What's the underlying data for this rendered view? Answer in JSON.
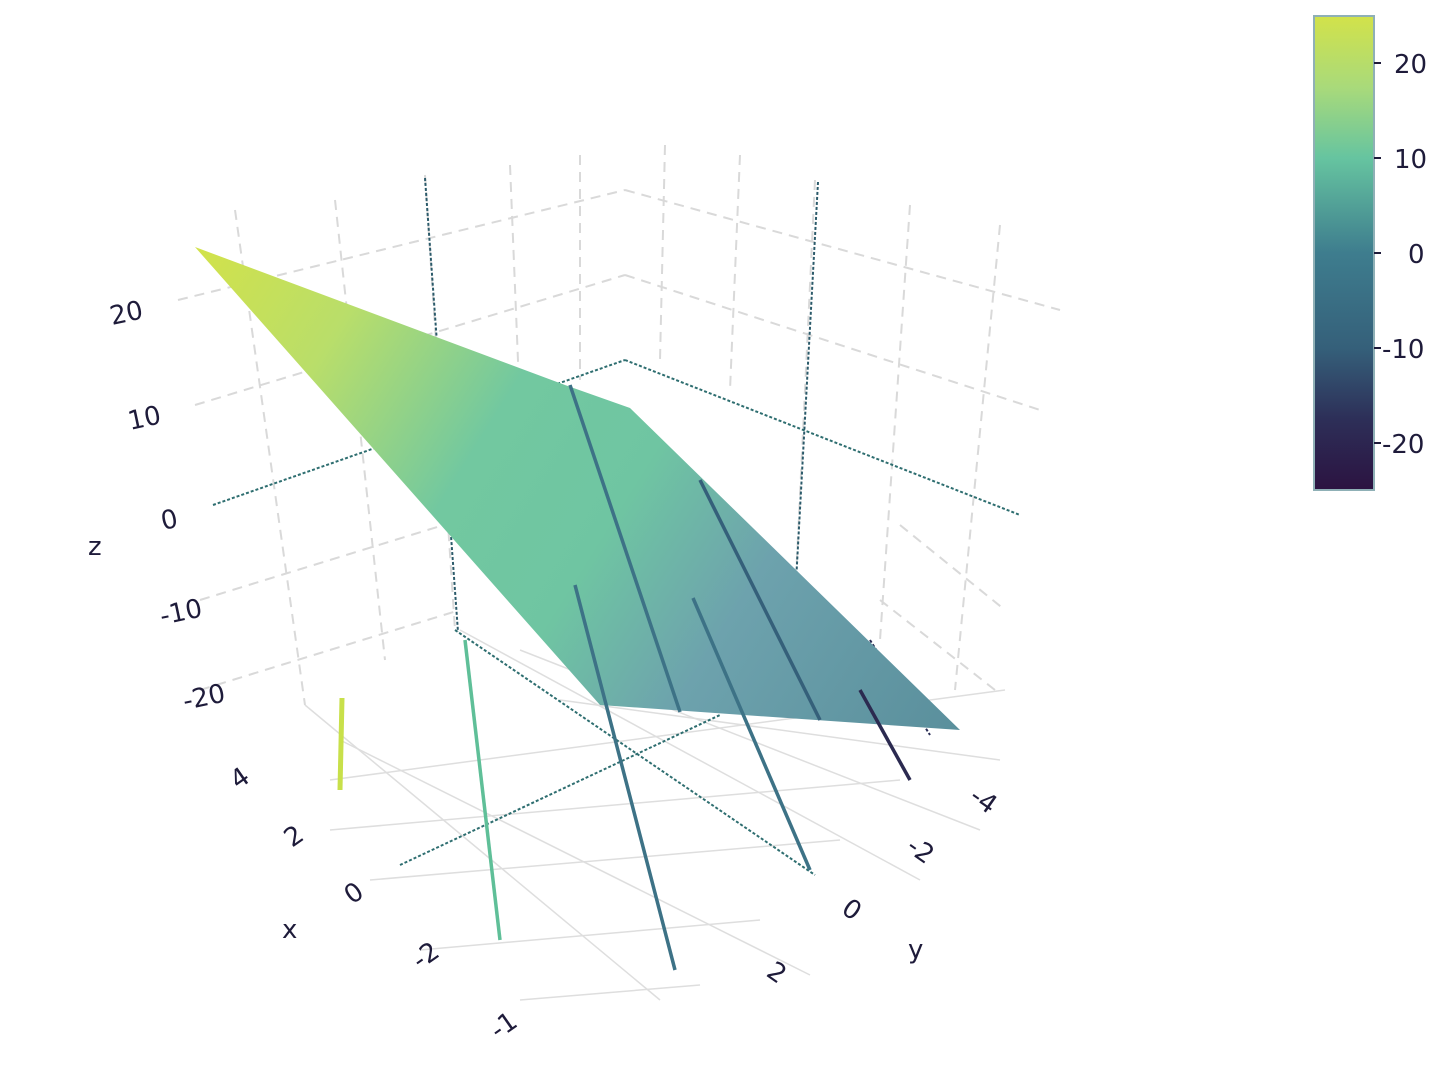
{
  "chart_data": {
    "type": "surface",
    "title": "",
    "axes": {
      "x": {
        "label": "x",
        "ticks": [
          "4",
          "2",
          "0",
          "-2",
          "-1"
        ]
      },
      "y": {
        "label": "y",
        "ticks": [
          "-4",
          "-2",
          "0",
          "2"
        ]
      },
      "z": {
        "label": "z",
        "ticks": [
          "20",
          "10",
          "0",
          "-10",
          "-20"
        ]
      }
    },
    "surface": {
      "description_range": {
        "x": [
          -2,
          5
        ],
        "y": [
          -5,
          3
        ],
        "z": [
          -25,
          25
        ]
      },
      "colorscale": "viridis"
    },
    "colorbar": {
      "ticks": [
        "20",
        "10",
        "0",
        "-10",
        "-20"
      ],
      "range": [
        -25,
        25
      ],
      "colors": [
        "#440154",
        "#3b528b",
        "#21918c",
        "#5ec962",
        "#c8e04a"
      ]
    },
    "grid": true,
    "legend": "none"
  }
}
